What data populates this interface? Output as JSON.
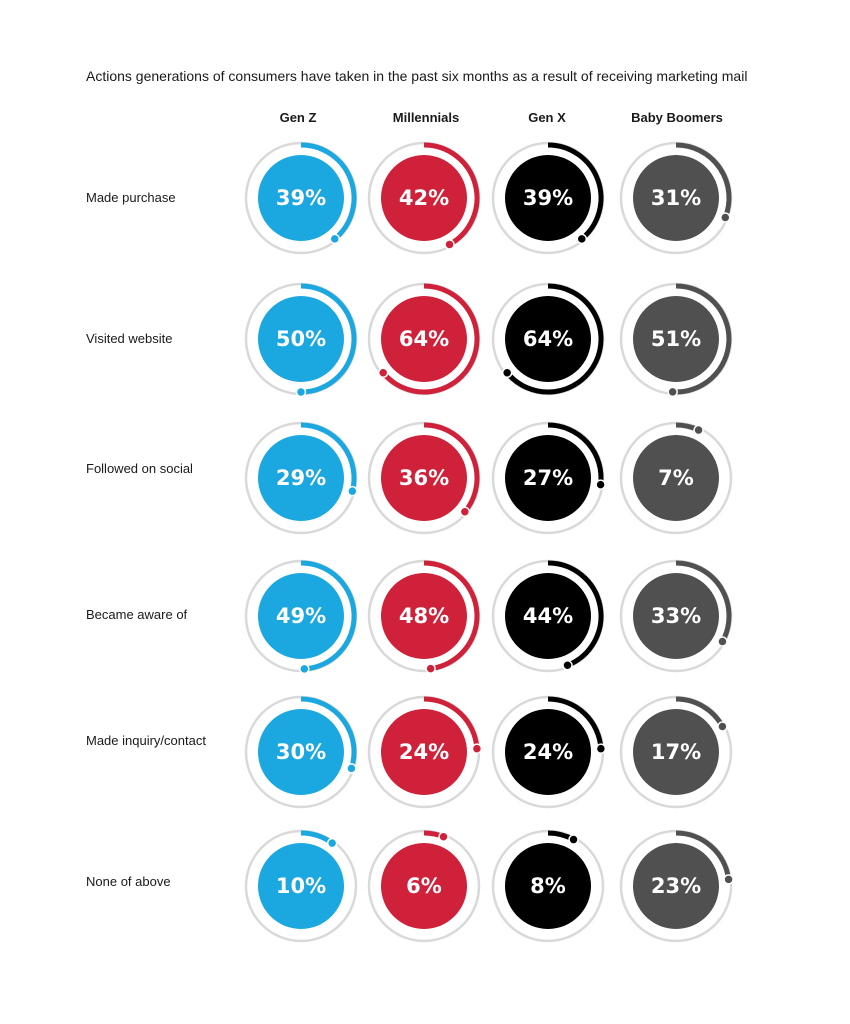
{
  "chart_data": {
    "type": "radial-progress-grid",
    "title": "Actions generations of consumers have taken in the past six months as a result of receiving marketing mail",
    "columns": [
      "Gen Z",
      "Millennials",
      "Gen X",
      "Baby Boomers"
    ],
    "rows": [
      "Made purchase",
      "Visited website",
      "Followed on social",
      "Became aware of",
      "Made inquiry/contact",
      "None of above"
    ],
    "values": [
      [
        39,
        42,
        39,
        31
      ],
      [
        50,
        64,
        64,
        51
      ],
      [
        29,
        36,
        27,
        7
      ],
      [
        49,
        48,
        44,
        33
      ],
      [
        30,
        24,
        24,
        17
      ],
      [
        10,
        6,
        8,
        23
      ]
    ],
    "labels": [
      [
        "39%",
        "42%",
        "39%",
        "31%"
      ],
      [
        "50%",
        "64%",
        "64%",
        "51%"
      ],
      [
        "29%",
        "36%",
        "27%",
        "7%"
      ],
      [
        "49%",
        "48%",
        "44%",
        "33%"
      ],
      [
        "30%",
        "24%",
        "24%",
        "17%"
      ],
      [
        "10%",
        "6%",
        "8%",
        "23%"
      ]
    ],
    "colors": [
      "#1ba7df",
      "#d0213a",
      "#000000",
      "#505050"
    ],
    "track_color": "#d9d9d9"
  }
}
